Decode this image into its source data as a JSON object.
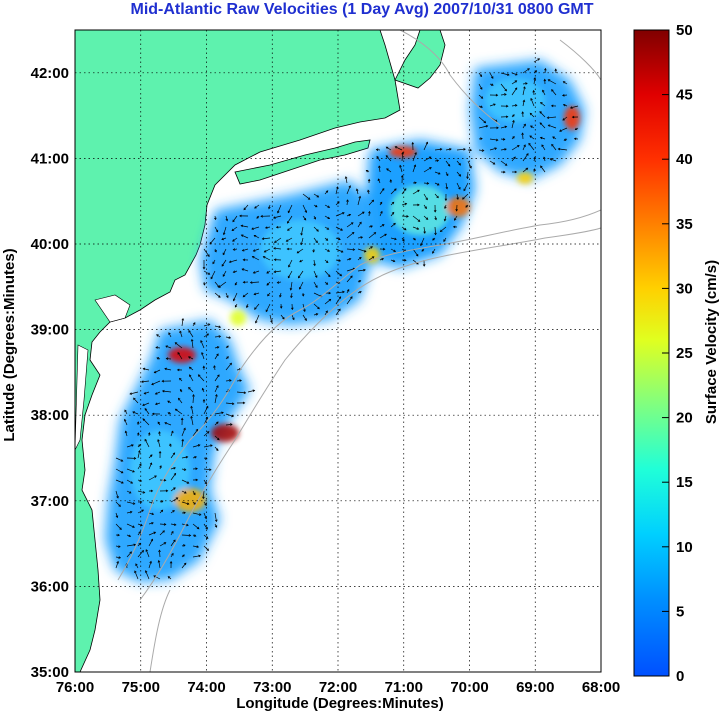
{
  "title": "Mid-Atlantic Raw Velocities (1 Day Avg) 2007/10/31 0800 GMT",
  "xaxis": {
    "label": "Longitude (Degrees:Minutes)",
    "ticks": [
      "76:00",
      "75:00",
      "74:00",
      "73:00",
      "72:00",
      "71:00",
      "70:00",
      "69:00",
      "68:00"
    ],
    "range_deg_west": [
      76,
      68
    ]
  },
  "yaxis": {
    "label": "Latitude (Degrees:Minutes)",
    "ticks": [
      "35:00",
      "36:00",
      "37:00",
      "38:00",
      "39:00",
      "40:00",
      "41:00",
      "42:00"
    ],
    "range_deg_north": [
      35,
      42.5
    ]
  },
  "colorbar": {
    "label": "Surface Velocity (cm/s)",
    "ticks": [
      "0",
      "5",
      "10",
      "15",
      "20",
      "25",
      "30",
      "35",
      "40",
      "45",
      "50"
    ],
    "range": [
      0,
      50
    ],
    "colormap": "jet"
  },
  "colors": {
    "land": "#5ef2ae",
    "ocean": "#ffffff",
    "grid": "#000000",
    "bathymetry": "#aaaaaa",
    "title": "#1f2fd0"
  },
  "legend_hotspots_cm_s": [
    {
      "lon": -71.0,
      "lat": 41.1,
      "value": 40
    },
    {
      "lon": -70.2,
      "lat": 40.4,
      "value": 35
    },
    {
      "lon": -68.4,
      "lat": 41.4,
      "value": 40
    },
    {
      "lon": -74.4,
      "lat": 38.7,
      "value": 45
    },
    {
      "lon": -73.7,
      "lat": 37.75,
      "value": 50
    },
    {
      "lon": -74.1,
      "lat": 36.95,
      "value": 38
    }
  ]
}
